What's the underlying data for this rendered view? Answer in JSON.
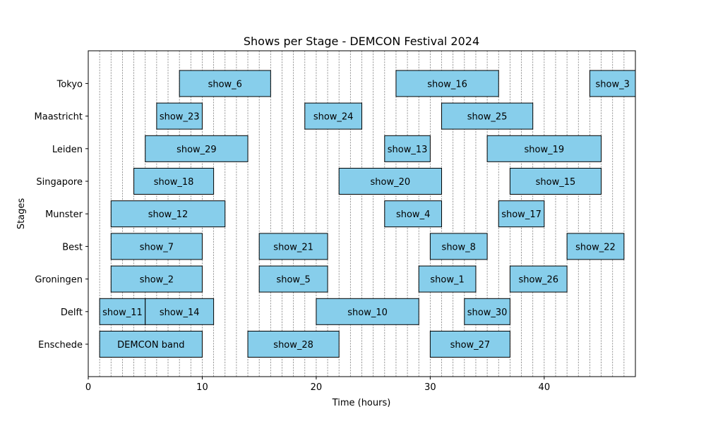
{
  "chart_data": {
    "type": "bar",
    "orientation": "horizontal-gantt",
    "title": "Shows per Stage - DEMCON Festival 2024",
    "xlabel": "Time (hours)",
    "ylabel": "Stages",
    "xlim": [
      0,
      48
    ],
    "xticks": [
      0,
      10,
      20,
      30,
      40
    ],
    "grid": "vertical dashed lines every hour",
    "bar_color": "#87ceeb",
    "categories": [
      "Enschede",
      "Delft",
      "Groningen",
      "Best",
      "Munster",
      "Singapore",
      "Leiden",
      "Maastricht",
      "Tokyo"
    ],
    "shows": [
      {
        "name": "DEMCON band",
        "stage": "Enschede",
        "start": 1,
        "end": 10
      },
      {
        "name": "show_28",
        "stage": "Enschede",
        "start": 14,
        "end": 22
      },
      {
        "name": "show_27",
        "stage": "Enschede",
        "start": 30,
        "end": 37
      },
      {
        "name": "show_11",
        "stage": "Delft",
        "start": 1,
        "end": 5
      },
      {
        "name": "show_14",
        "stage": "Delft",
        "start": 5,
        "end": 11
      },
      {
        "name": "show_10",
        "stage": "Delft",
        "start": 20,
        "end": 29
      },
      {
        "name": "show_30",
        "stage": "Delft",
        "start": 33,
        "end": 37
      },
      {
        "name": "show_2",
        "stage": "Groningen",
        "start": 2,
        "end": 10
      },
      {
        "name": "show_5",
        "stage": "Groningen",
        "start": 15,
        "end": 21
      },
      {
        "name": "show_1",
        "stage": "Groningen",
        "start": 29,
        "end": 34
      },
      {
        "name": "show_26",
        "stage": "Groningen",
        "start": 37,
        "end": 42
      },
      {
        "name": "show_7",
        "stage": "Best",
        "start": 2,
        "end": 10
      },
      {
        "name": "show_21",
        "stage": "Best",
        "start": 15,
        "end": 21
      },
      {
        "name": "show_8",
        "stage": "Best",
        "start": 30,
        "end": 35
      },
      {
        "name": "show_22",
        "stage": "Best",
        "start": 42,
        "end": 47
      },
      {
        "name": "show_12",
        "stage": "Munster",
        "start": 2,
        "end": 12
      },
      {
        "name": "show_4",
        "stage": "Munster",
        "start": 26,
        "end": 31
      },
      {
        "name": "show_17",
        "stage": "Munster",
        "start": 36,
        "end": 40
      },
      {
        "name": "show_18",
        "stage": "Singapore",
        "start": 4,
        "end": 11
      },
      {
        "name": "show_20",
        "stage": "Singapore",
        "start": 22,
        "end": 31
      },
      {
        "name": "show_15",
        "stage": "Singapore",
        "start": 37,
        "end": 45
      },
      {
        "name": "show_29",
        "stage": "Leiden",
        "start": 5,
        "end": 14
      },
      {
        "name": "show_13",
        "stage": "Leiden",
        "start": 26,
        "end": 30
      },
      {
        "name": "show_19",
        "stage": "Leiden",
        "start": 35,
        "end": 45
      },
      {
        "name": "show_23",
        "stage": "Maastricht",
        "start": 6,
        "end": 10
      },
      {
        "name": "show_24",
        "stage": "Maastricht",
        "start": 19,
        "end": 24
      },
      {
        "name": "show_25",
        "stage": "Maastricht",
        "start": 31,
        "end": 39
      },
      {
        "name": "show_6",
        "stage": "Tokyo",
        "start": 8,
        "end": 16
      },
      {
        "name": "show_16",
        "stage": "Tokyo",
        "start": 27,
        "end": 36
      },
      {
        "name": "show_3",
        "stage": "Tokyo",
        "start": 44,
        "end": 48
      }
    ]
  }
}
